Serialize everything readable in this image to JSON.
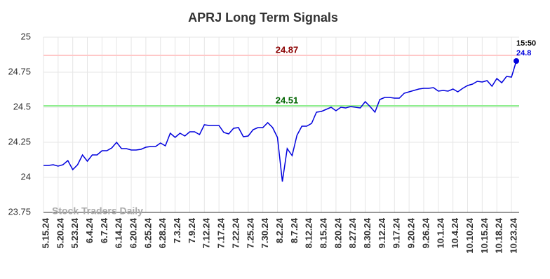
{
  "chart_data": {
    "type": "line",
    "title": "APRJ Long Term Signals",
    "categories": [
      "5.15.24",
      null,
      null,
      "5.20.24",
      null,
      null,
      "5.23.24",
      null,
      null,
      "6.4.24",
      null,
      null,
      "6.7.24",
      null,
      null,
      "6.14.24",
      null,
      null,
      "6.20.24",
      null,
      null,
      "6.25.24",
      null,
      null,
      "6.28.24",
      null,
      null,
      "7.3.24",
      null,
      null,
      "7.9.24",
      null,
      null,
      "7.12.24",
      null,
      null,
      "7.17.24",
      null,
      null,
      "7.22.24",
      null,
      null,
      "7.25.24",
      null,
      null,
      "7.30.24",
      null,
      null,
      "8.2.24",
      null,
      null,
      "8.7.24",
      null,
      null,
      "8.12.24",
      null,
      null,
      "8.15.24",
      null,
      null,
      "8.20.24",
      null,
      null,
      "8.27.24",
      null,
      null,
      "8.30.24",
      null,
      null,
      "9.12.24",
      null,
      null,
      "9.17.24",
      null,
      null,
      "9.20.24",
      null,
      null,
      "9.26.24",
      null,
      null,
      "10.1.24",
      null,
      null,
      "10.4.24",
      null,
      null,
      "10.10.24",
      null,
      null,
      "10.15.24",
      null,
      null,
      "10.18.24",
      null,
      null,
      "10.23.24",
      null
    ],
    "series": [
      {
        "color": "#0000dd",
        "values": [
          24.085,
          24.085,
          24.09,
          24.08,
          24.09,
          24.12,
          24.055,
          24.09,
          24.16,
          24.115,
          24.16,
          24.16,
          24.19,
          24.19,
          24.21,
          24.25,
          24.205,
          24.205,
          24.195,
          24.195,
          24.2,
          24.215,
          24.22,
          24.22,
          24.245,
          24.225,
          24.315,
          24.285,
          24.315,
          24.295,
          24.325,
          24.325,
          24.305,
          24.375,
          24.37,
          24.37,
          24.37,
          24.32,
          24.31,
          24.35,
          24.355,
          24.29,
          24.295,
          24.34,
          24.355,
          24.355,
          24.39,
          24.355,
          24.285,
          23.97,
          24.205,
          24.155,
          24.3,
          24.365,
          24.365,
          24.385,
          24.465,
          24.47,
          24.485,
          24.5,
          24.475,
          24.5,
          24.495,
          24.505,
          24.5,
          24.495,
          24.54,
          24.505,
          24.465,
          24.555,
          24.57,
          24.57,
          24.565,
          24.565,
          24.6,
          24.61,
          24.62,
          24.63,
          24.635,
          24.635,
          24.64,
          24.615,
          24.62,
          24.615,
          24.63,
          24.61,
          24.635,
          24.655,
          24.665,
          24.685,
          24.68,
          24.69,
          24.65,
          24.705,
          24.675,
          24.72,
          24.715,
          24.83
        ]
      }
    ],
    "end_time_label": "15:50",
    "end_value_label": "24.8",
    "end_value_label_color": "#0000dd",
    "reference_lines": [
      {
        "value": 24.87,
        "color": "#ffc8c8",
        "label_color": "#8b0000"
      },
      {
        "value": 24.51,
        "color": "#90ee90",
        "label_color": "#006400"
      }
    ],
    "watermark": "Stock Traders Daily",
    "ylim": [
      23.75,
      25
    ],
    "yticks": [
      23.75,
      24,
      24.25,
      24.5,
      24.75,
      25
    ],
    "grid": true
  }
}
